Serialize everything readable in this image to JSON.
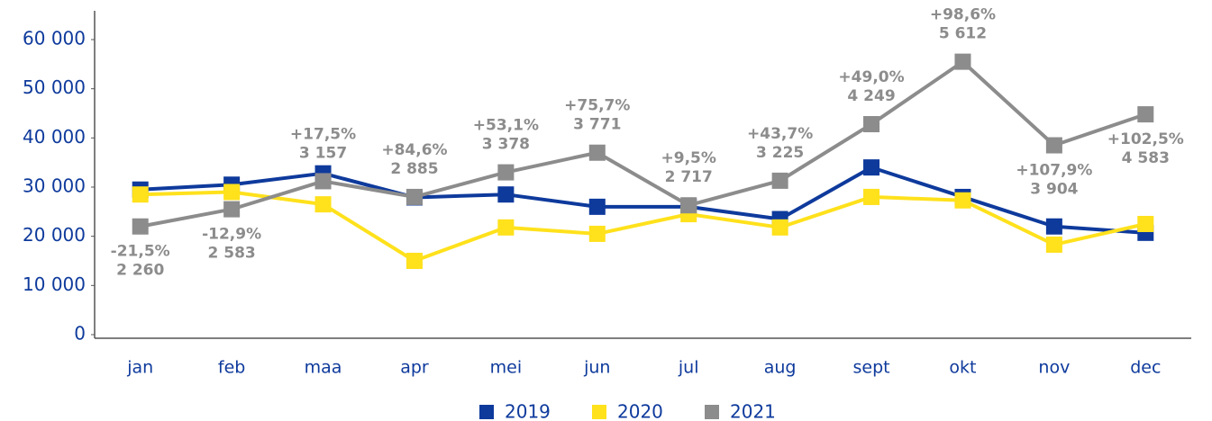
{
  "chart_data": {
    "type": "line",
    "categories": [
      "jan",
      "feb",
      "maa",
      "apr",
      "mei",
      "jun",
      "jul",
      "aug",
      "sept",
      "okt",
      "nov",
      "dec"
    ],
    "series": [
      {
        "name": "2019",
        "color": "#0e3a9c",
        "values": [
          29500,
          30500,
          32800,
          27900,
          28500,
          26000,
          26000,
          23500,
          34000,
          28000,
          22000,
          20700
        ]
      },
      {
        "name": "2020",
        "color": "#ffe11c",
        "values": [
          28500,
          29000,
          26500,
          15000,
          21800,
          20500,
          24500,
          21800,
          28000,
          27300,
          18300,
          22500
        ]
      },
      {
        "name": "2021",
        "color": "#8c8c8c",
        "values": [
          22000,
          25500,
          31200,
          28000,
          33000,
          37000,
          26300,
          31300,
          42800,
          55500,
          38500,
          44800
        ]
      }
    ],
    "annotations": [
      {
        "change": "-21,5%",
        "difference": "2 260"
      },
      {
        "change": "-12,9%",
        "difference": "2 583"
      },
      {
        "change": "+17,5%",
        "difference": "3 157"
      },
      {
        "change": "+84,6%",
        "difference": "2 885"
      },
      {
        "change": "+53,1%",
        "difference": "3 378"
      },
      {
        "change": "+75,7%",
        "difference": "3 771"
      },
      {
        "change": "+9,5%",
        "difference": "2 717"
      },
      {
        "change": "+43,7%",
        "difference": "3 225"
      },
      {
        "change": "+49,0%",
        "difference": "4 249"
      },
      {
        "change": "+98,6%",
        "difference": "5 612"
      },
      {
        "change": "+107,9%",
        "difference": "3 904"
      },
      {
        "change": "+102,5%",
        "difference": "4 583"
      }
    ],
    "ylim": [
      0,
      60000
    ],
    "yticks": [
      {
        "value": 0,
        "label": "0"
      },
      {
        "value": 10000,
        "label": "10 000"
      },
      {
        "value": 20000,
        "label": "20 000"
      },
      {
        "value": 30000,
        "label": "30 000"
      },
      {
        "value": 40000,
        "label": "40 000"
      },
      {
        "value": 50000,
        "label": "50 000"
      },
      {
        "value": 60000,
        "label": "60 000"
      }
    ],
    "legend": "bottom",
    "grid": false
  }
}
